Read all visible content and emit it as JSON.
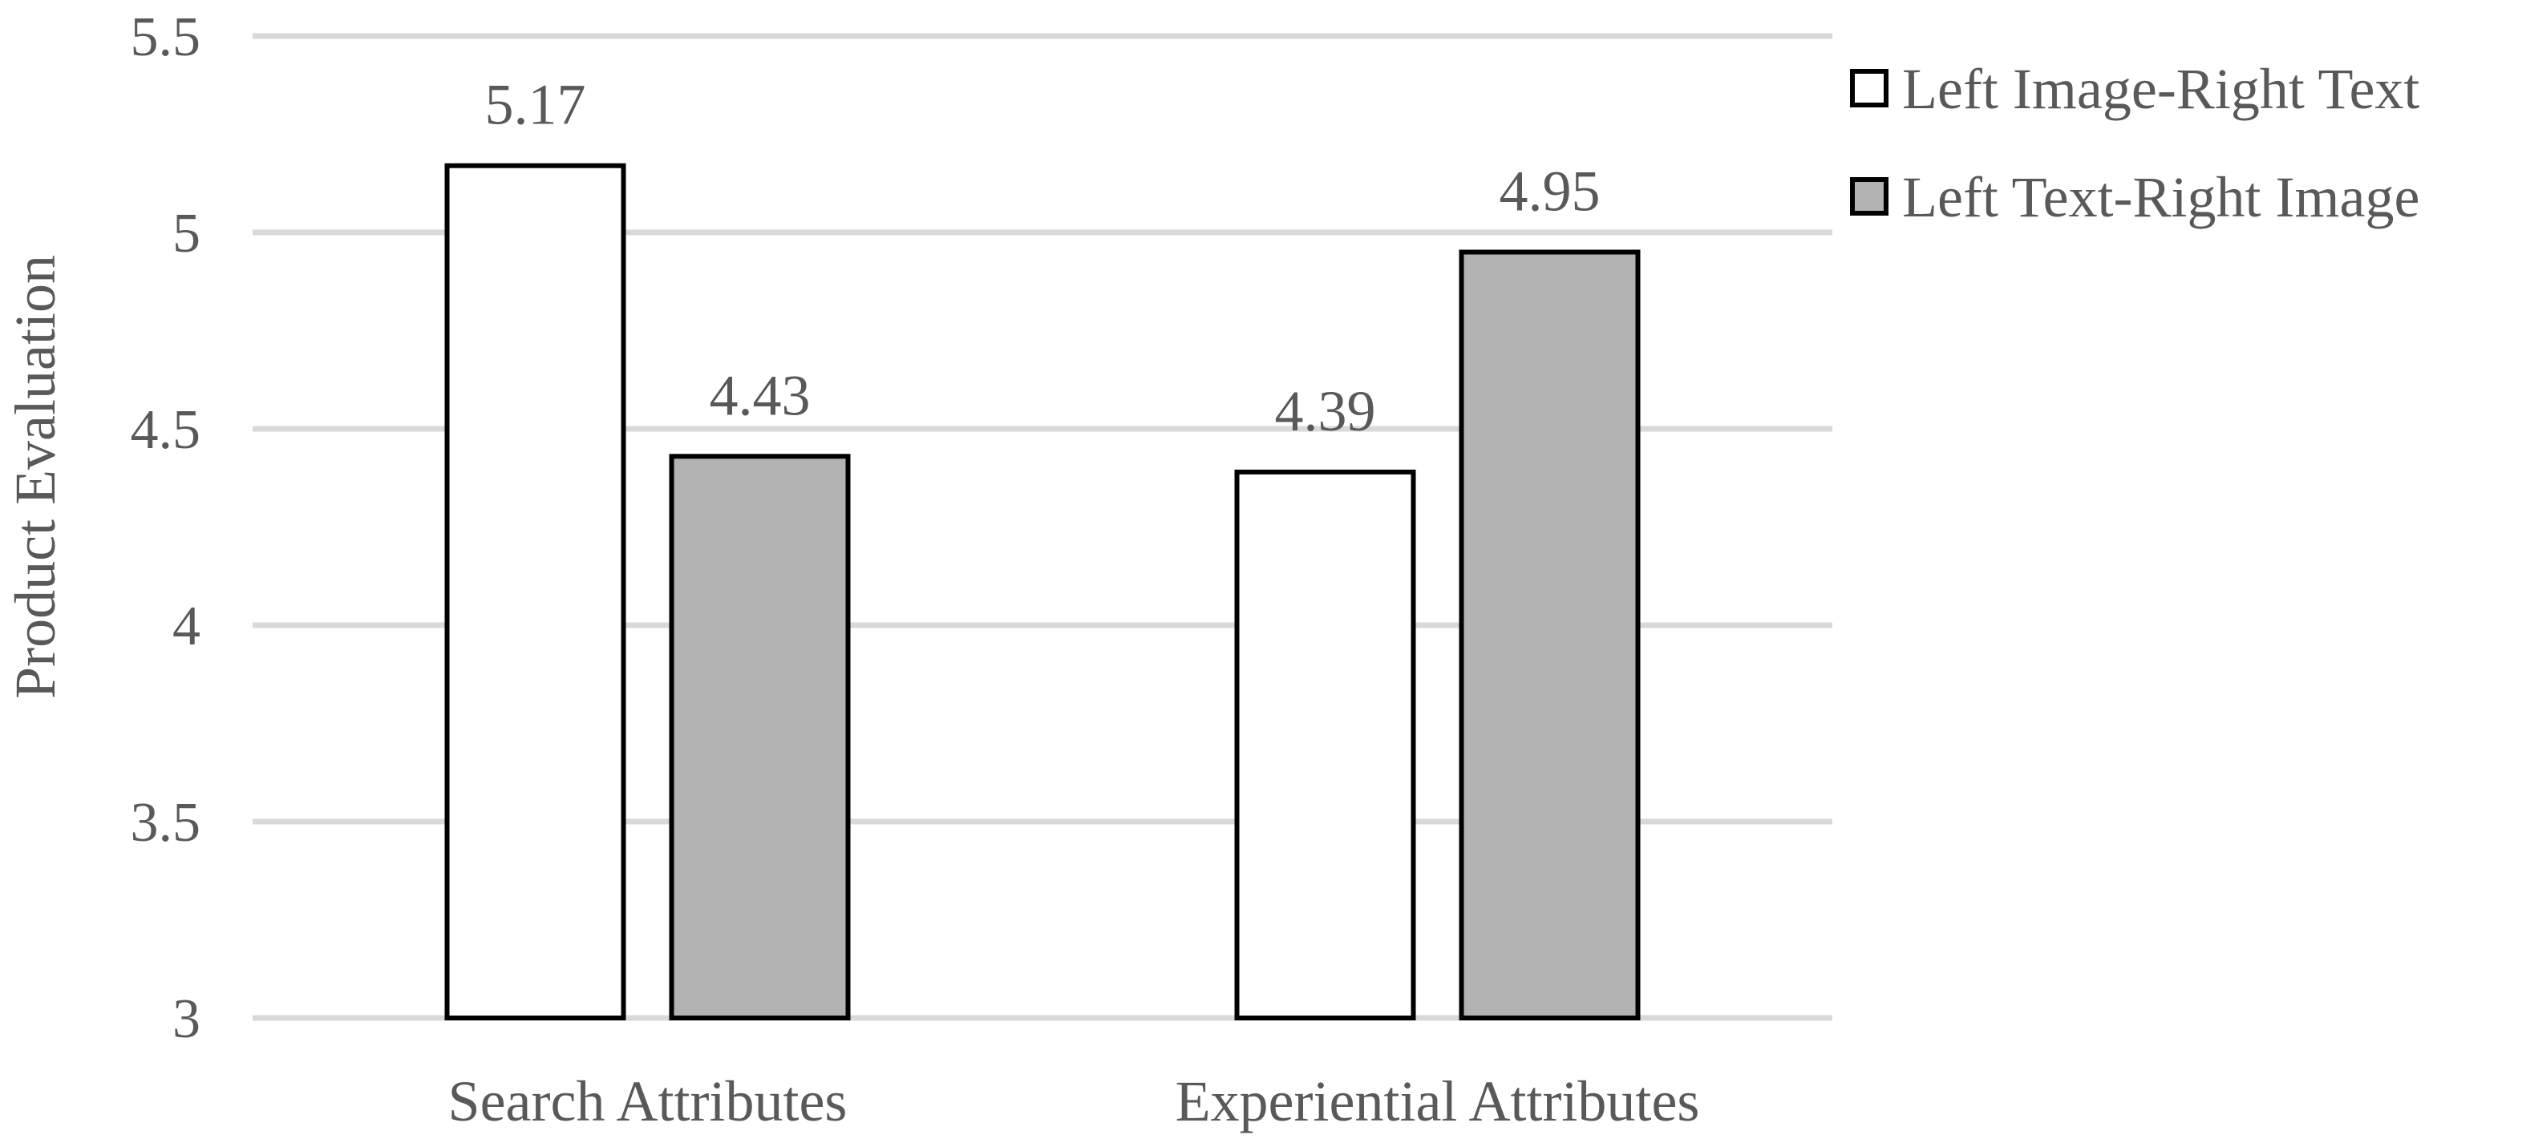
{
  "chart_data": {
    "type": "bar",
    "categories": [
      "Search Attributes",
      "Experiential Attributes"
    ],
    "series": [
      {
        "name": "Left Image-Right Text",
        "values": [
          5.17,
          4.39
        ],
        "color": "#ffffff"
      },
      {
        "name": "Left Text-Right Image",
        "values": [
          4.43,
          4.95
        ],
        "color": "#b3b3b3"
      }
    ],
    "ylabel": "Product Evaluation",
    "xlabel": "",
    "ylim": [
      3,
      5.5
    ],
    "yticks": [
      "3",
      "3.5",
      "4",
      "4.5",
      "5",
      "5.5"
    ],
    "data_labels": [
      [
        "5.17",
        "4.39"
      ],
      [
        "4.43",
        "4.95"
      ]
    ],
    "grid": true,
    "legend_position": "top-right"
  }
}
